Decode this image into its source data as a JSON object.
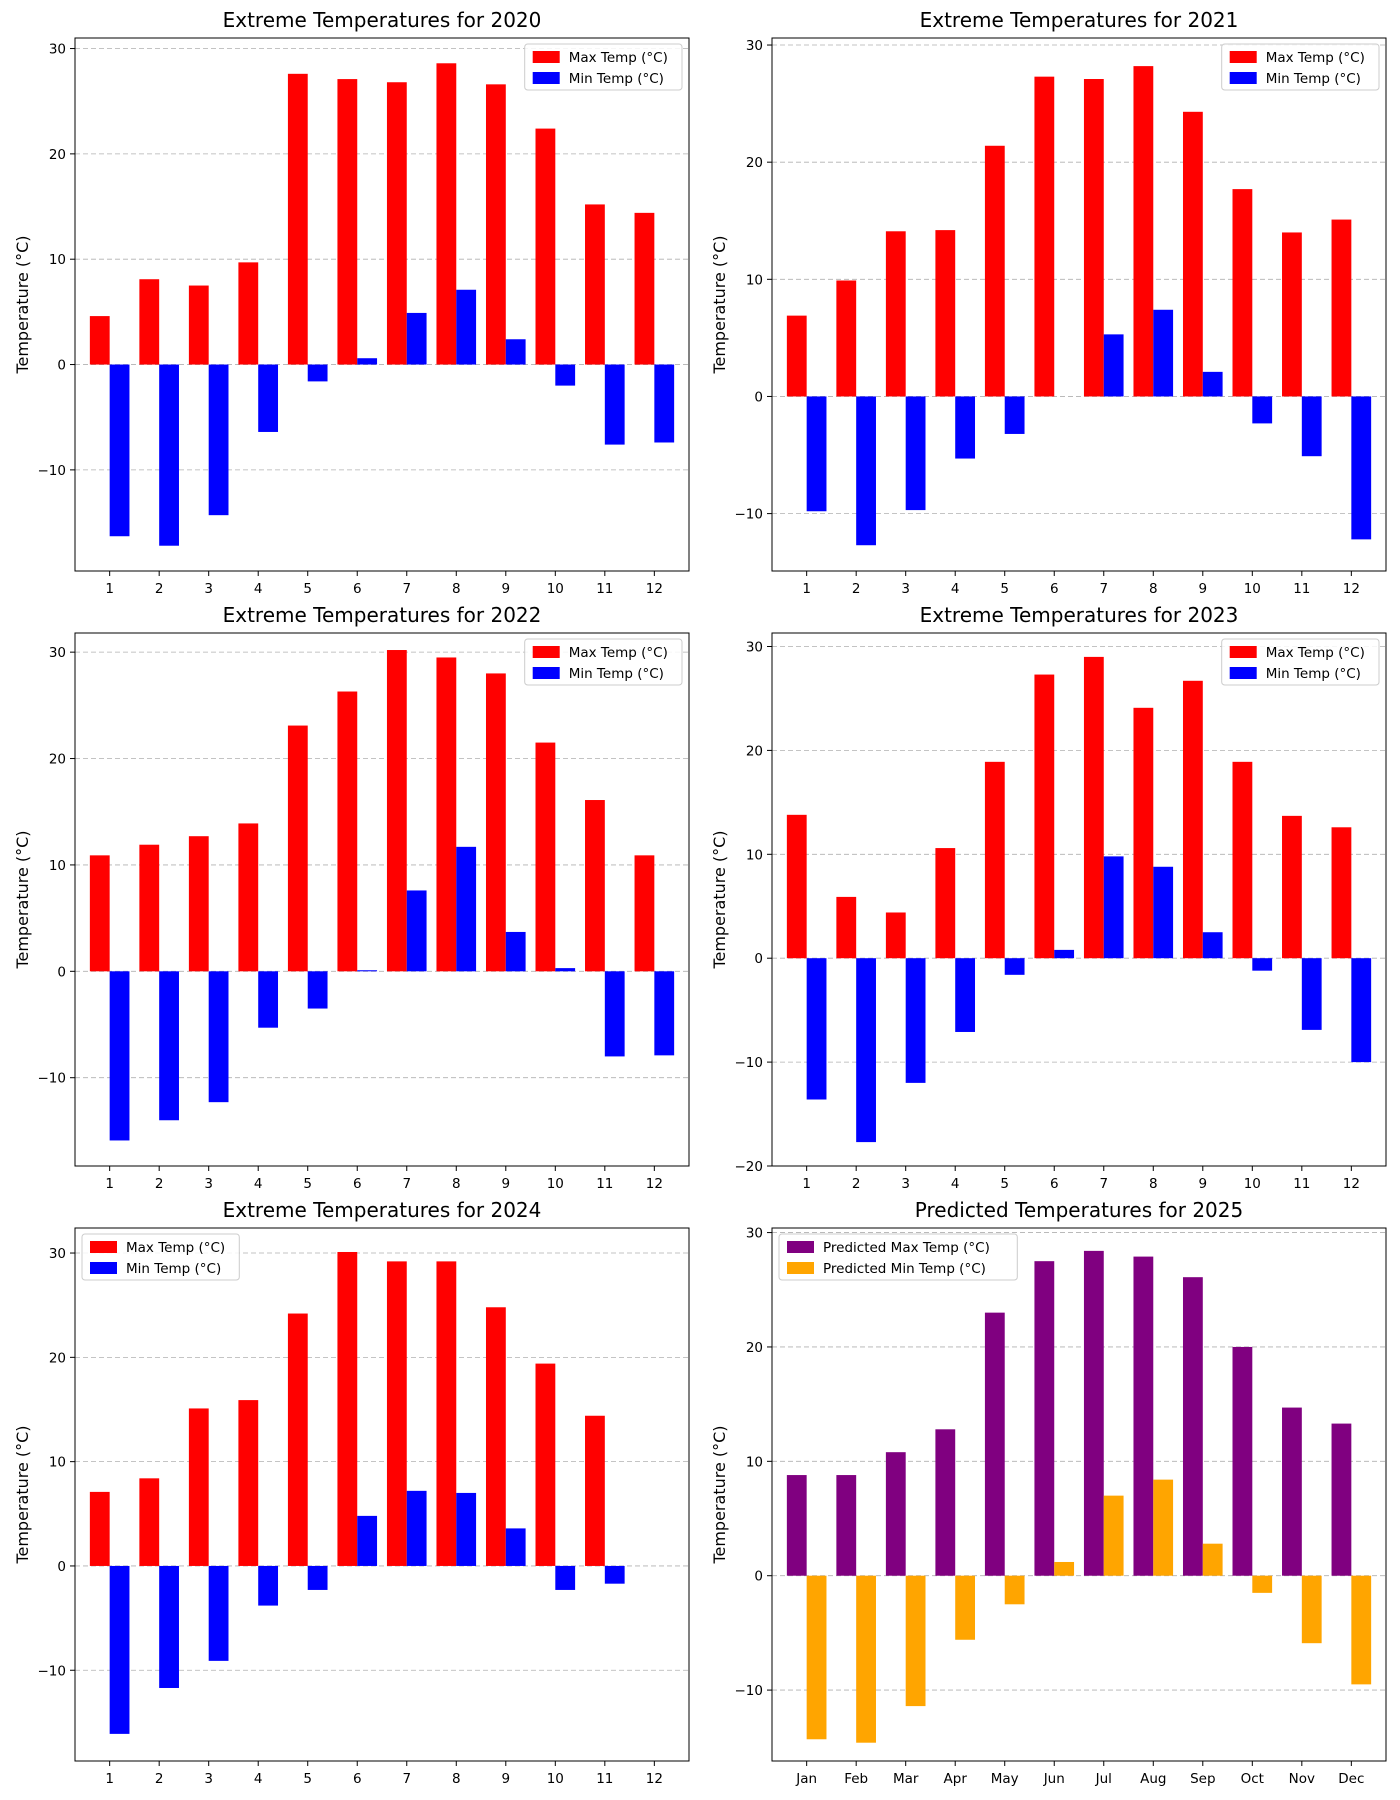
{
  "chart_data": [
    {
      "type": "bar",
      "title": "Extreme Temperatures for 2020",
      "xlabel": "",
      "ylabel": "Temperature (°C)",
      "categories": [
        "1",
        "2",
        "3",
        "4",
        "5",
        "6",
        "7",
        "8",
        "9",
        "10",
        "11",
        "12"
      ],
      "xticks": [
        "1",
        "2",
        "3",
        "4",
        "5",
        "6",
        "7",
        "8",
        "9",
        "10",
        "11",
        "12"
      ],
      "ylim": [
        -19.6,
        31.0
      ],
      "yticks": [
        -10,
        0,
        10,
        20,
        30
      ],
      "grid": "y-dashed",
      "legend_position": "top-right",
      "series": [
        {
          "name": "Max Temp (°C)",
          "color": "#ff0000",
          "values": [
            4.6,
            8.1,
            7.5,
            9.7,
            27.6,
            27.1,
            26.8,
            28.6,
            26.6,
            22.4,
            15.2,
            14.4
          ]
        },
        {
          "name": "Min Temp (°C)",
          "color": "#0000ff",
          "values": [
            -16.3,
            -17.2,
            -14.3,
            -6.4,
            -1.6,
            0.6,
            4.9,
            7.1,
            2.4,
            -2.0,
            -7.6,
            -7.4
          ]
        }
      ]
    },
    {
      "type": "bar",
      "title": "Extreme Temperatures for 2021",
      "xlabel": "",
      "ylabel": "Temperature (°C)",
      "categories": [
        "1",
        "2",
        "3",
        "4",
        "5",
        "6",
        "7",
        "8",
        "9",
        "10",
        "11",
        "12"
      ],
      "xticks": [
        "1",
        "2",
        "3",
        "4",
        "5",
        "6",
        "7",
        "8",
        "9",
        "10",
        "11",
        "12"
      ],
      "ylim": [
        -14.9,
        30.6
      ],
      "yticks": [
        -10,
        0,
        10,
        20,
        30
      ],
      "grid": "y-dashed",
      "legend_position": "top-right",
      "series": [
        {
          "name": "Max Temp (°C)",
          "color": "#ff0000",
          "values": [
            6.9,
            9.9,
            14.1,
            14.2,
            21.4,
            27.3,
            27.1,
            28.2,
            24.3,
            17.7,
            14.0,
            15.1
          ]
        },
        {
          "name": "Min Temp (°C)",
          "color": "#0000ff",
          "values": [
            -9.8,
            -12.7,
            -9.7,
            -5.3,
            -3.2,
            0.0,
            5.3,
            7.4,
            2.1,
            -2.3,
            -5.1,
            -12.2
          ]
        }
      ]
    },
    {
      "type": "bar",
      "title": "Extreme Temperatures for 2022",
      "xlabel": "",
      "ylabel": "Temperature (°C)",
      "categories": [
        "1",
        "2",
        "3",
        "4",
        "5",
        "6",
        "7",
        "8",
        "9",
        "10",
        "11",
        "12"
      ],
      "xticks": [
        "1",
        "2",
        "3",
        "4",
        "5",
        "6",
        "7",
        "8",
        "9",
        "10",
        "11",
        "12"
      ],
      "ylim": [
        -18.3,
        31.8
      ],
      "yticks": [
        -10,
        0,
        10,
        20,
        30
      ],
      "grid": "y-dashed",
      "legend_position": "top-right",
      "series": [
        {
          "name": "Max Temp (°C)",
          "color": "#ff0000",
          "values": [
            10.9,
            11.9,
            12.7,
            13.9,
            23.1,
            26.3,
            30.2,
            29.5,
            28.0,
            21.5,
            16.1,
            10.9
          ]
        },
        {
          "name": "Min Temp (°C)",
          "color": "#0000ff",
          "values": [
            -15.9,
            -14.0,
            -12.3,
            -5.3,
            -3.5,
            0.1,
            7.6,
            11.7,
            3.7,
            0.3,
            -8.0,
            -7.9
          ]
        }
      ]
    },
    {
      "type": "bar",
      "title": "Extreme Temperatures for 2023",
      "xlabel": "",
      "ylabel": "Temperature (°C)",
      "categories": [
        "1",
        "2",
        "3",
        "4",
        "5",
        "6",
        "7",
        "8",
        "9",
        "10",
        "11",
        "12"
      ],
      "xticks": [
        "1",
        "2",
        "3",
        "4",
        "5",
        "6",
        "7",
        "8",
        "9",
        "10",
        "11",
        "12"
      ],
      "ylim": [
        -20.0,
        31.3
      ],
      "yticks": [
        -20,
        -10,
        0,
        10,
        20,
        30
      ],
      "grid": "y-dashed",
      "legend_position": "top-right",
      "series": [
        {
          "name": "Max Temp (°C)",
          "color": "#ff0000",
          "values": [
            13.8,
            5.9,
            4.4,
            10.6,
            18.9,
            27.3,
            29.0,
            24.1,
            26.7,
            18.9,
            13.7,
            12.6
          ]
        },
        {
          "name": "Min Temp (°C)",
          "color": "#0000ff",
          "values": [
            -13.6,
            -17.7,
            -12.0,
            -7.1,
            -1.6,
            0.8,
            9.8,
            8.8,
            2.5,
            -1.2,
            -6.9,
            -10.0
          ]
        }
      ]
    },
    {
      "type": "bar",
      "title": "Extreme Temperatures for 2024",
      "xlabel": "",
      "ylabel": "Temperature (°C)",
      "categories": [
        "1",
        "2",
        "3",
        "4",
        "5",
        "6",
        "7",
        "8",
        "9",
        "10",
        "11"
      ],
      "xticks": [
        "1",
        "2",
        "3",
        "4",
        "5",
        "6",
        "7",
        "8",
        "9",
        "10",
        "11",
        "12"
      ],
      "ylim": [
        -18.7,
        32.4
      ],
      "yticks": [
        -10,
        0,
        10,
        20,
        30
      ],
      "grid": "y-dashed",
      "legend_position": "top-left",
      "series": [
        {
          "name": "Max Temp (°C)",
          "color": "#ff0000",
          "values": [
            7.1,
            8.4,
            15.1,
            15.9,
            24.2,
            30.1,
            29.2,
            29.2,
            24.8,
            19.4,
            14.4
          ]
        },
        {
          "name": "Min Temp (°C)",
          "color": "#0000ff",
          "values": [
            -16.1,
            -11.7,
            -9.1,
            -3.8,
            -2.3,
            4.8,
            7.2,
            7.0,
            3.6,
            -2.3,
            -1.7
          ]
        }
      ]
    },
    {
      "type": "bar",
      "title": "Predicted Temperatures for 2025",
      "xlabel": "",
      "ylabel": "Temperature (°C)",
      "categories": [
        "Jan",
        "Feb",
        "Mar",
        "Apr",
        "May",
        "Jun",
        "Jul",
        "Aug",
        "Sep",
        "Oct",
        "Nov",
        "Dec"
      ],
      "xticks": [
        "Jan",
        "Feb",
        "Mar",
        "Apr",
        "May",
        "Jun",
        "Jul",
        "Aug",
        "Sep",
        "Oct",
        "Nov",
        "Dec"
      ],
      "ylim": [
        -16.2,
        30.4
      ],
      "yticks": [
        -10,
        0,
        10,
        20,
        30
      ],
      "grid": "y-dashed",
      "legend_position": "top-left",
      "series": [
        {
          "name": "Predicted Max Temp (°C)",
          "color": "#800080",
          "values": [
            8.8,
            8.8,
            10.8,
            12.8,
            23.0,
            27.5,
            28.4,
            27.9,
            26.1,
            20.0,
            14.7,
            13.3
          ]
        },
        {
          "name": "Predicted Min Temp (°C)",
          "color": "#ffa500",
          "values": [
            -14.3,
            -14.6,
            -11.4,
            -5.6,
            -2.5,
            1.2,
            7.0,
            8.4,
            2.8,
            -1.5,
            -5.9,
            -9.5
          ]
        }
      ]
    }
  ]
}
